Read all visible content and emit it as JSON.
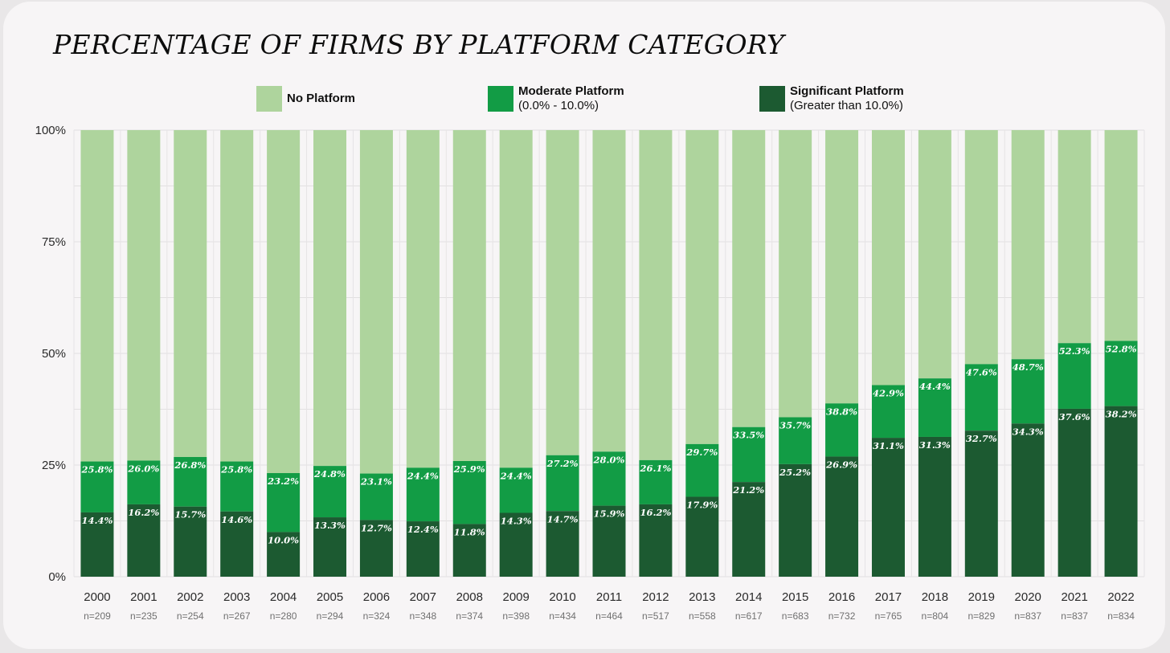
{
  "chart_data": {
    "type": "bar",
    "stacked": true,
    "title": "PERCENTAGE OF FIRMS BY PLATFORM CATEGORY",
    "categories": [
      "2000",
      "2001",
      "2002",
      "2003",
      "2004",
      "2005",
      "2006",
      "2007",
      "2008",
      "2009",
      "2010",
      "2011",
      "2012",
      "2013",
      "2014",
      "2015",
      "2016",
      "2017",
      "2018",
      "2019",
      "2020",
      "2021",
      "2022"
    ],
    "sample_sizes": [
      "n=209",
      "n=235",
      "n=254",
      "n=267",
      "n=280",
      "n=294",
      "n=324",
      "n=348",
      "n=374",
      "n=398",
      "n=434",
      "n=464",
      "n=517",
      "n=558",
      "n=617",
      "n=683",
      "n=732",
      "n=765",
      "n=804",
      "n=829",
      "n=837",
      "n=837",
      "n=834"
    ],
    "significant_cumulative": [
      14.4,
      16.2,
      15.7,
      14.6,
      10.0,
      13.3,
      12.7,
      12.4,
      11.8,
      14.3,
      14.7,
      15.9,
      16.2,
      17.9,
      21.2,
      25.2,
      26.9,
      31.1,
      31.3,
      32.7,
      34.3,
      37.6,
      38.2
    ],
    "platform_cumulative": [
      25.8,
      26.0,
      26.8,
      25.8,
      23.2,
      24.8,
      23.1,
      24.4,
      25.9,
      24.4,
      27.2,
      28.0,
      26.1,
      29.7,
      33.5,
      35.7,
      38.8,
      42.9,
      44.4,
      47.6,
      48.7,
      52.3,
      52.8
    ],
    "significant_labels": [
      "14.4%",
      "16.2%",
      "15.7%",
      "14.6%",
      "10.0%",
      "13.3%",
      "12.7%",
      "12.4%",
      "11.8%",
      "14.3%",
      "14.7%",
      "15.9%",
      "16.2%",
      "17.9%",
      "21.2%",
      "25.2%",
      "26.9%",
      "31.1%",
      "31.3%",
      "32.7%",
      "34.3%",
      "37.6%",
      "38.2%"
    ],
    "platform_labels": [
      "25.8%",
      "26.0%",
      "26.8%",
      "25.8%",
      "23.2%",
      "24.8%",
      "23.1%",
      "24.4%",
      "25.9%",
      "24.4%",
      "27.2%",
      "28.0%",
      "26.1%",
      "29.7%",
      "33.5%",
      "35.7%",
      "38.8%",
      "42.9%",
      "44.4%",
      "47.6%",
      "48.7%",
      "52.3%",
      "52.8%"
    ],
    "series": [
      {
        "name": "No Platform",
        "color": "#aed49d"
      },
      {
        "name": "Moderate Platform",
        "note": "(0.0% - 10.0%)",
        "color": "#129c45"
      },
      {
        "name": "Significant Platform",
        "note": "(Greater than 10.0%)",
        "color": "#1c5a31"
      }
    ],
    "ylim": [
      0,
      100
    ],
    "yticks": [
      "0%",
      "25%",
      "50%",
      "75%",
      "100%"
    ],
    "ytick_values": [
      0,
      25,
      50,
      75,
      100
    ],
    "grid": true,
    "legend_position": "top"
  }
}
